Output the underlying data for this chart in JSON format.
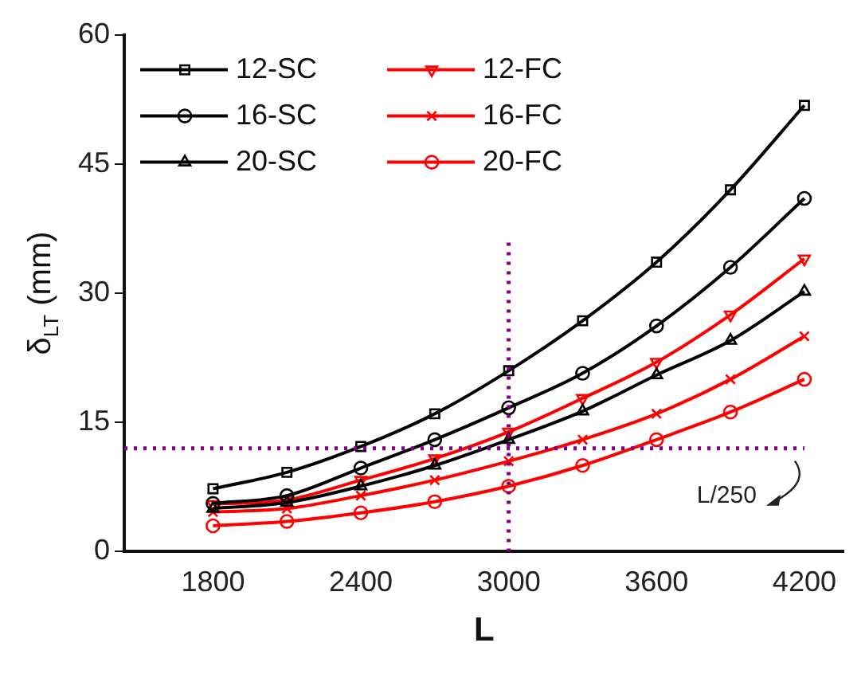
{
  "chart_data": {
    "type": "line",
    "xlabel": "L",
    "ylabel": "δ$_{LT}$ (mm)",
    "x": [
      1800,
      2100,
      2400,
      2700,
      3000,
      3300,
      3600,
      3900,
      4200
    ],
    "xlim": [
      1440,
      4360
    ],
    "xticks": [
      1800,
      2400,
      3000,
      3600,
      4200
    ],
    "ylim": [
      0,
      60
    ],
    "yticks": [
      0,
      15,
      30,
      45,
      60
    ],
    "grid": false,
    "legend": "top left",
    "line_style": "solid",
    "series": [
      {
        "name": "12-SC",
        "color": "#000000",
        "marker": "square",
        "values": [
          7.3,
          9.2,
          12.2,
          16,
          21,
          26.8,
          33.6,
          42,
          51.8
        ]
      },
      {
        "name": "16-SC",
        "color": "#000000",
        "marker": "circle",
        "values": [
          5.6,
          6.5,
          9.7,
          13,
          16.7,
          20.7,
          26.2,
          33,
          41
        ]
      },
      {
        "name": "20-SC",
        "color": "#000000",
        "marker": "triangle",
        "values": [
          5,
          5.7,
          7.6,
          10,
          13,
          16.3,
          20.5,
          24.5,
          30.2
        ]
      },
      {
        "name": "12-FC",
        "color": "#ff0000",
        "marker": "triangle-down",
        "values": [
          5.5,
          6,
          8.3,
          10.8,
          13.9,
          17.8,
          22,
          27.5,
          34
        ]
      },
      {
        "name": "16-FC",
        "color": "#ff0000",
        "marker": "cross",
        "values": [
          4.6,
          5,
          6.5,
          8.3,
          10.5,
          13,
          16,
          20,
          25
        ]
      },
      {
        "name": "20-FC",
        "color": "#ff0000",
        "marker": "circle",
        "values": [
          3,
          3.5,
          4.5,
          5.8,
          7.6,
          10,
          13,
          16.2,
          20
        ]
      }
    ],
    "ref_lines": [
      {
        "axis": "y",
        "value": 12,
        "label": "L/250",
        "color": "#800080",
        "line_style": "dotted"
      },
      {
        "axis": "x",
        "value": 3000,
        "color": "#800080",
        "line_style": "dotted"
      }
    ]
  }
}
